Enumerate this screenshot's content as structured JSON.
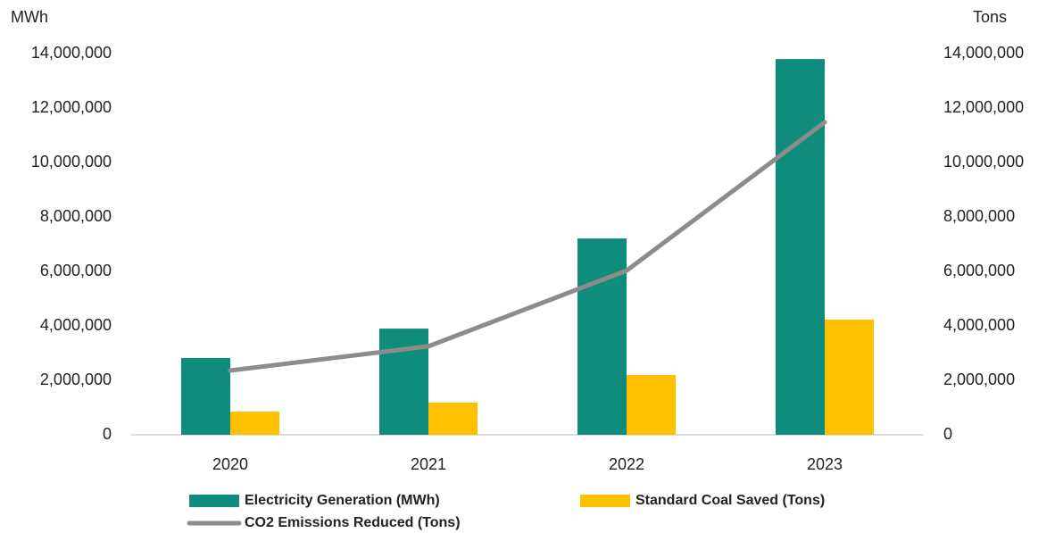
{
  "chart_data": {
    "type": "bar",
    "y_label": "MWh",
    "y2_label": "Tons",
    "categories": [
      "2020",
      "2021",
      "2022",
      "2023"
    ],
    "series": [
      {
        "name": "Electricity Generation (MWh)",
        "type": "bar",
        "color": "#0f8c7c",
        "values": [
          2820000,
          3900000,
          7210000,
          13800000
        ]
      },
      {
        "name": "Standard Coal Saved (Tons)",
        "type": "bar",
        "color": "#ffc000",
        "values": [
          850000,
          1180000,
          2200000,
          4230000
        ]
      },
      {
        "name": "CO2 Emissions Reduced (Tons)",
        "type": "line",
        "axis": "y2",
        "color": "#8c8c8c",
        "values": [
          2360000,
          3250000,
          6030000,
          11480000
        ]
      }
    ],
    "ylim": [
      0,
      14000000
    ],
    "yticks": [
      0,
      {
        "value": 2000000,
        "label": "2,000,000"
      },
      {
        "value": 4000000,
        "label": "4,000,000"
      },
      {
        "value": 6000000,
        "label": "6,000,000"
      },
      {
        "value": 8000000,
        "label": "8,000,000"
      },
      {
        "value": 10000000,
        "label": "10,000,000"
      },
      {
        "value": 12000000,
        "label": "12,000,000"
      },
      {
        "value": 14000000,
        "label": "14,000,000"
      }
    ],
    "y2lim": [
      0,
      14000000
    ],
    "y2ticks": [
      0,
      {
        "value": 2000000,
        "label": "2,000,000"
      },
      {
        "value": 4000000,
        "label": "4,000,000"
      },
      {
        "value": 6000000,
        "label": "6,000,000"
      },
      {
        "value": 8000000,
        "label": "8,000,000"
      },
      {
        "value": 10000000,
        "label": "10,000,000"
      },
      {
        "value": 12000000,
        "label": "12,000,000"
      },
      {
        "value": 14000000,
        "label": "14,000,000"
      }
    ],
    "legend": "bottom"
  }
}
